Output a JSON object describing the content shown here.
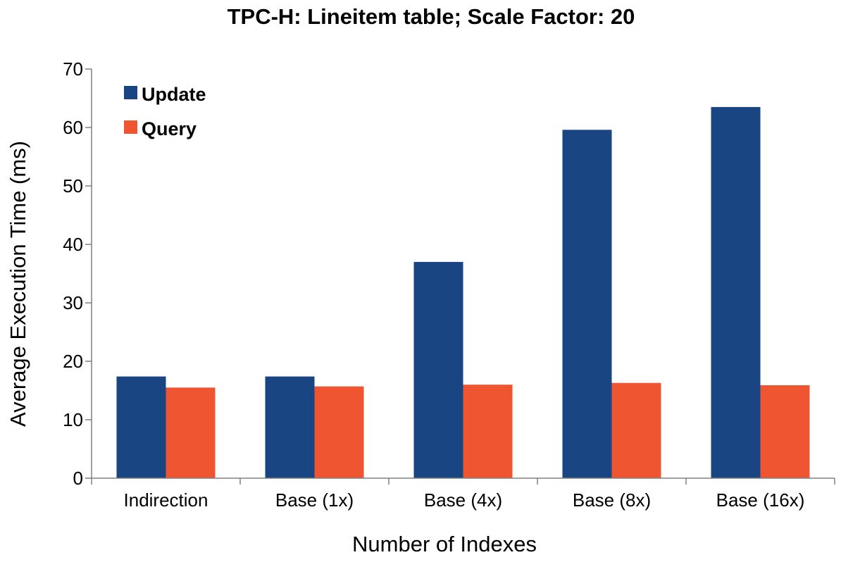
{
  "chart_data": {
    "type": "bar",
    "title": "TPC-H: Lineitem table; Scale Factor: 20",
    "xlabel": "Number of Indexes",
    "ylabel": "Average Execution Time (ms)",
    "ylim": [
      0,
      70
    ],
    "yticks": [
      0,
      10,
      20,
      30,
      40,
      50,
      60,
      70
    ],
    "categories": [
      "Indirection",
      "Base (1x)",
      "Base (4x)",
      "Base (8x)",
      "Base (16x)"
    ],
    "series": [
      {
        "name": "Update",
        "color": "#194582",
        "values": [
          17.4,
          17.4,
          37.0,
          59.6,
          63.5
        ]
      },
      {
        "name": "Query",
        "color": "#ef5530",
        "values": [
          15.5,
          15.7,
          16.0,
          16.3,
          15.9
        ]
      }
    ],
    "grid": false,
    "legend_position": "top-left"
  }
}
